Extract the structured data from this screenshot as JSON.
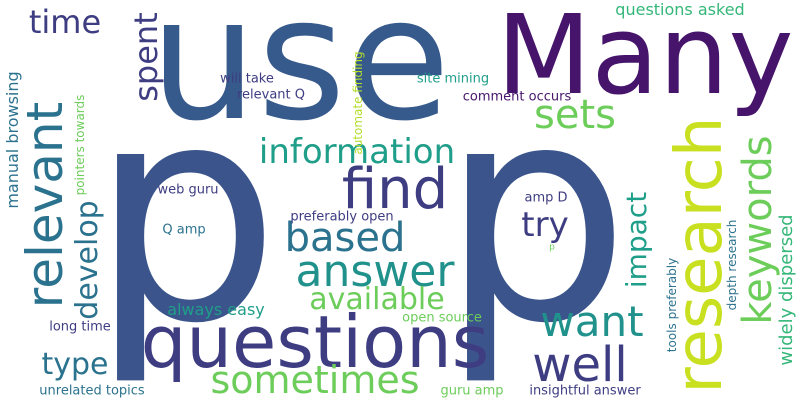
{
  "colors": {
    "dark_purple": "#46156b",
    "indigo": "#3e3d82",
    "blue": "#375a8c",
    "slate": "#3b558c",
    "teal_blue": "#2b728e",
    "teal": "#21918c",
    "sea_green": "#1f9e89",
    "green": "#35b779",
    "light_green": "#6ccd5a",
    "lime": "#b5de2b",
    "yellow": "#c8e020"
  },
  "words": [
    {
      "text": "p",
      "color": "#3b558c"
    },
    {
      "text": "p",
      "color": "#3b558c"
    },
    {
      "text": "use",
      "color": "#375a8c"
    },
    {
      "text": "Many",
      "color": "#46156b"
    },
    {
      "text": "questions",
      "color": "#3e3d82"
    },
    {
      "text": "research",
      "color": "#c8e020"
    },
    {
      "text": "relevant",
      "color": "#2b728e"
    },
    {
      "text": "find",
      "color": "#3e3d82"
    },
    {
      "text": "answer",
      "color": "#21918c"
    },
    {
      "text": "based",
      "color": "#2b728e"
    },
    {
      "text": "sometimes",
      "color": "#6ccd5a"
    },
    {
      "text": "keywords",
      "color": "#6ccd5a"
    },
    {
      "text": "well",
      "color": "#3e3d82"
    },
    {
      "text": "want",
      "color": "#21918c"
    },
    {
      "text": "information",
      "color": "#1f9e89"
    },
    {
      "text": "available",
      "color": "#6ccd5a"
    },
    {
      "text": "sets",
      "color": "#6ccd5a"
    },
    {
      "text": "try",
      "color": "#3e3d82"
    },
    {
      "text": "time",
      "color": "#3e3d82"
    },
    {
      "text": "spent",
      "color": "#3e3d82"
    },
    {
      "text": "develop",
      "color": "#2b728e"
    },
    {
      "text": "type",
      "color": "#2b728e"
    },
    {
      "text": "impact",
      "color": "#1f9e89"
    },
    {
      "text": "widely dispersed",
      "color": "#35b779"
    },
    {
      "text": "questions asked",
      "color": "#35b779"
    },
    {
      "text": "always easy",
      "color": "#1f9e89"
    },
    {
      "text": "manual browsing",
      "color": "#2b728e"
    },
    {
      "text": "pointers towards",
      "color": "#6ccd5a"
    },
    {
      "text": "automate finding",
      "color": "#b5de2b"
    },
    {
      "text": "will take",
      "color": "#3e3d82"
    },
    {
      "text": "relevant Q",
      "color": "#3e3d82"
    },
    {
      "text": "site mining",
      "color": "#1f9e89"
    },
    {
      "text": "comment occurs",
      "color": "#46156b"
    },
    {
      "text": "web guru",
      "color": "#3e3d82"
    },
    {
      "text": "Q amp",
      "color": "#2b728e"
    },
    {
      "text": "preferably open",
      "color": "#3e3d82"
    },
    {
      "text": "amp D",
      "color": "#3e3d82"
    },
    {
      "text": "p",
      "color": "#6ccd5a"
    },
    {
      "text": "depth research",
      "color": "#2b728e"
    },
    {
      "text": "tools preferably",
      "color": "#2b728e"
    },
    {
      "text": "open source",
      "color": "#6ccd5a"
    },
    {
      "text": "long time",
      "color": "#3e3d82"
    },
    {
      "text": "unrelated topics",
      "color": "#2b728e"
    },
    {
      "text": "guru amp",
      "color": "#6ccd5a"
    },
    {
      "text": "insightful answer",
      "color": "#3e3d82"
    }
  ]
}
